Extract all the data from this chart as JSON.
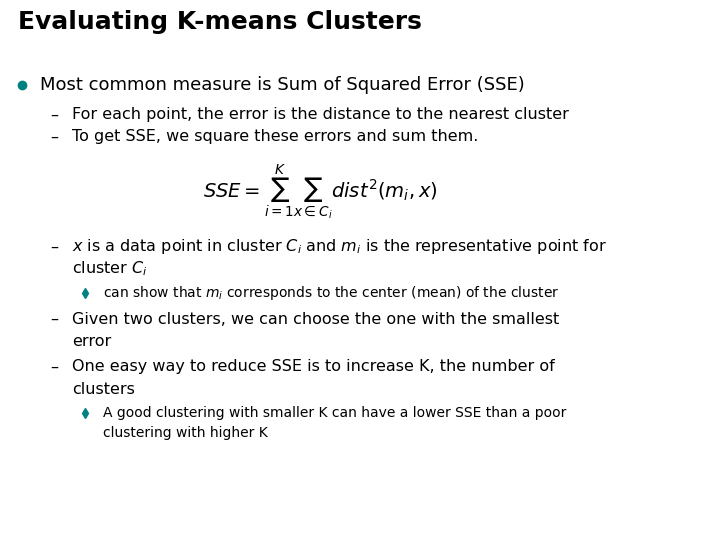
{
  "title": "Evaluating K-means Clusters",
  "title_fontsize": 18,
  "background_color": "#ffffff",
  "text_color": "#000000",
  "bullet_color": "#008080",
  "diamond_color": "#008080",
  "bullet1": "Most common measure is Sum of Squared Error (SSE)",
  "bullet1_fontsize": 13,
  "dash_fontsize": 11.5,
  "formula": "$SSE = \\sum_{i=1}^{K} \\sum_{x \\in C_i} dist^2(m_i, x)$",
  "formula_fontsize": 14,
  "dash1": "For each point, the error is the distance to the nearest cluster",
  "dash2": "To get SSE, we square these errors and sum them.",
  "dash3_part1": "$x$ is a data point in cluster $C_i$ and $m_i$ is the representative point for",
  "dash3_part2": "cluster $C_i$",
  "diamond1": "can show that $m_i$ corresponds to the center (mean) of the cluster",
  "diamond1_fontsize": 10,
  "dash4_part1": "Given two clusters, we can choose the one with the smallest",
  "dash4_part2": "error",
  "dash5_part1": "One easy way to reduce SSE is to increase K, the number of",
  "dash5_part2": "clusters",
  "diamond2_part1": "A good clustering with smaller K can have a lower SSE than a poor",
  "diamond2_part2": "clustering with higher K",
  "diamond2_fontsize": 10
}
